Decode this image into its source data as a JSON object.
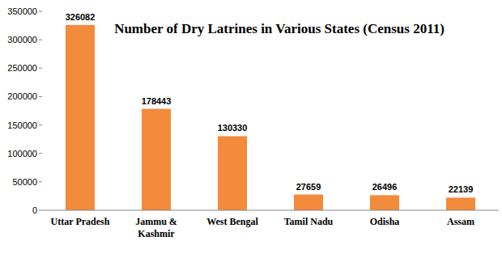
{
  "chart_data": {
    "type": "bar",
    "title": "Number of Dry Latrines in Various States (Census 2011)",
    "categories": [
      "Uttar Pradesh",
      "Jammu & Kashmir",
      "West Bengal",
      "Tamil Nadu",
      "Odisha",
      "Assam"
    ],
    "values": [
      326082,
      178443,
      130330,
      27659,
      26496,
      22139
    ],
    "color": "#f28b3c",
    "ylim": [
      0,
      350000
    ],
    "yticks": [
      0,
      50000,
      100000,
      150000,
      200000,
      250000,
      300000,
      350000
    ],
    "grid": false,
    "data_labels": true
  }
}
